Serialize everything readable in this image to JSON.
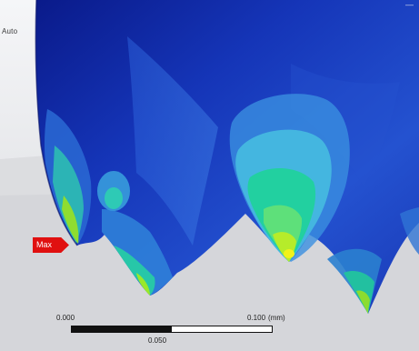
{
  "viewport": {
    "corner_label": "Auto",
    "top_right_mark": "—"
  },
  "probe": {
    "label": "Max",
    "color": "#e01010"
  },
  "scale_ruler": {
    "left_label": "0.000",
    "right_label": "0.100",
    "unit": "(mm)",
    "mid_label": "0.050"
  },
  "contour_colors": {
    "low": "#0a1e9c",
    "mid_low": "#2f6fd8",
    "mid": "#44b6e0",
    "mid_high": "#22d0a0",
    "high": "#9ae82a",
    "max": "#f0f020"
  }
}
